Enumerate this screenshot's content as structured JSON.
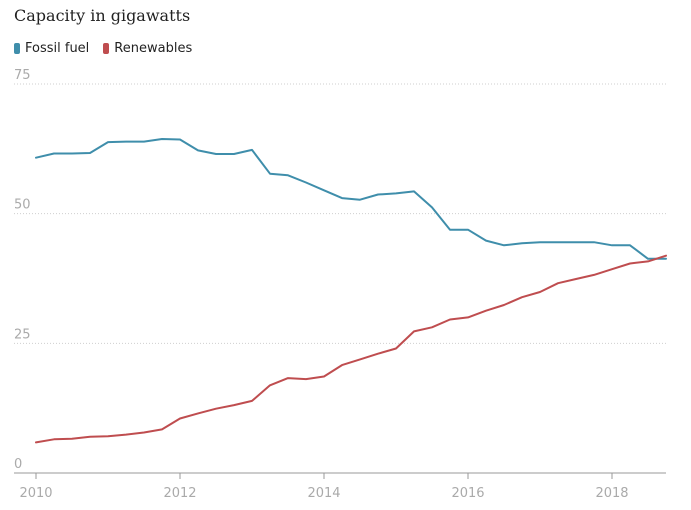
{
  "chart_data": {
    "type": "line",
    "title": "Capacity in gigawatts",
    "xlabel": "",
    "ylabel": "",
    "ylim": [
      0,
      75
    ],
    "xlim": [
      2010,
      2018.75
    ],
    "yticks": [
      0,
      25,
      50,
      75
    ],
    "xticks": [
      2010,
      2012,
      2014,
      2016,
      2018
    ],
    "grid": true,
    "legend_position": "top-left",
    "series": [
      {
        "name": "Fossil fuel",
        "color": "#3f8eab",
        "x": [
          2010,
          2010.25,
          2010.5,
          2010.75,
          2011,
          2011.25,
          2011.5,
          2011.75,
          2012,
          2012.25,
          2012.5,
          2012.75,
          2013,
          2013.25,
          2013.5,
          2013.75,
          2014,
          2014.25,
          2014.5,
          2014.75,
          2015,
          2015.25,
          2015.5,
          2015.75,
          2016,
          2016.25,
          2016.5,
          2016.75,
          2017,
          2017.25,
          2017.5,
          2017.75,
          2018,
          2018.25,
          2018.5,
          2018.75
        ],
        "values": [
          60.8,
          61.6,
          61.6,
          61.7,
          63.8,
          63.9,
          63.9,
          64.4,
          64.3,
          62.2,
          61.5,
          61.5,
          62.3,
          57.7,
          57.4,
          56.0,
          54.5,
          53.0,
          52.7,
          53.7,
          53.9,
          54.3,
          51.2,
          46.9,
          46.9,
          44.8,
          43.9,
          44.3,
          44.5,
          44.5,
          44.5,
          44.5,
          43.9,
          43.9,
          41.3,
          41.3
        ]
      },
      {
        "name": "Renewables",
        "color": "#bf4d4f",
        "x": [
          2010,
          2010.25,
          2010.5,
          2010.75,
          2011,
          2011.25,
          2011.5,
          2011.75,
          2012,
          2012.25,
          2012.5,
          2012.75,
          2013,
          2013.25,
          2013.5,
          2013.75,
          2014,
          2014.25,
          2014.5,
          2014.75,
          2015,
          2015.25,
          2015.5,
          2015.75,
          2016,
          2016.25,
          2016.5,
          2016.75,
          2017,
          2017.25,
          2017.5,
          2017.75,
          2018,
          2018.25,
          2018.5,
          2018.75
        ],
        "values": [
          5.9,
          6.5,
          6.6,
          7.0,
          7.1,
          7.4,
          7.8,
          8.4,
          10.5,
          11.5,
          12.4,
          13.1,
          13.9,
          16.9,
          18.3,
          18.1,
          18.6,
          20.8,
          21.9,
          23.0,
          24.0,
          27.3,
          28.1,
          29.6,
          30.0,
          31.3,
          32.4,
          33.9,
          34.9,
          36.6,
          37.4,
          38.2,
          39.3,
          40.4,
          40.8,
          41.9
        ]
      }
    ]
  }
}
